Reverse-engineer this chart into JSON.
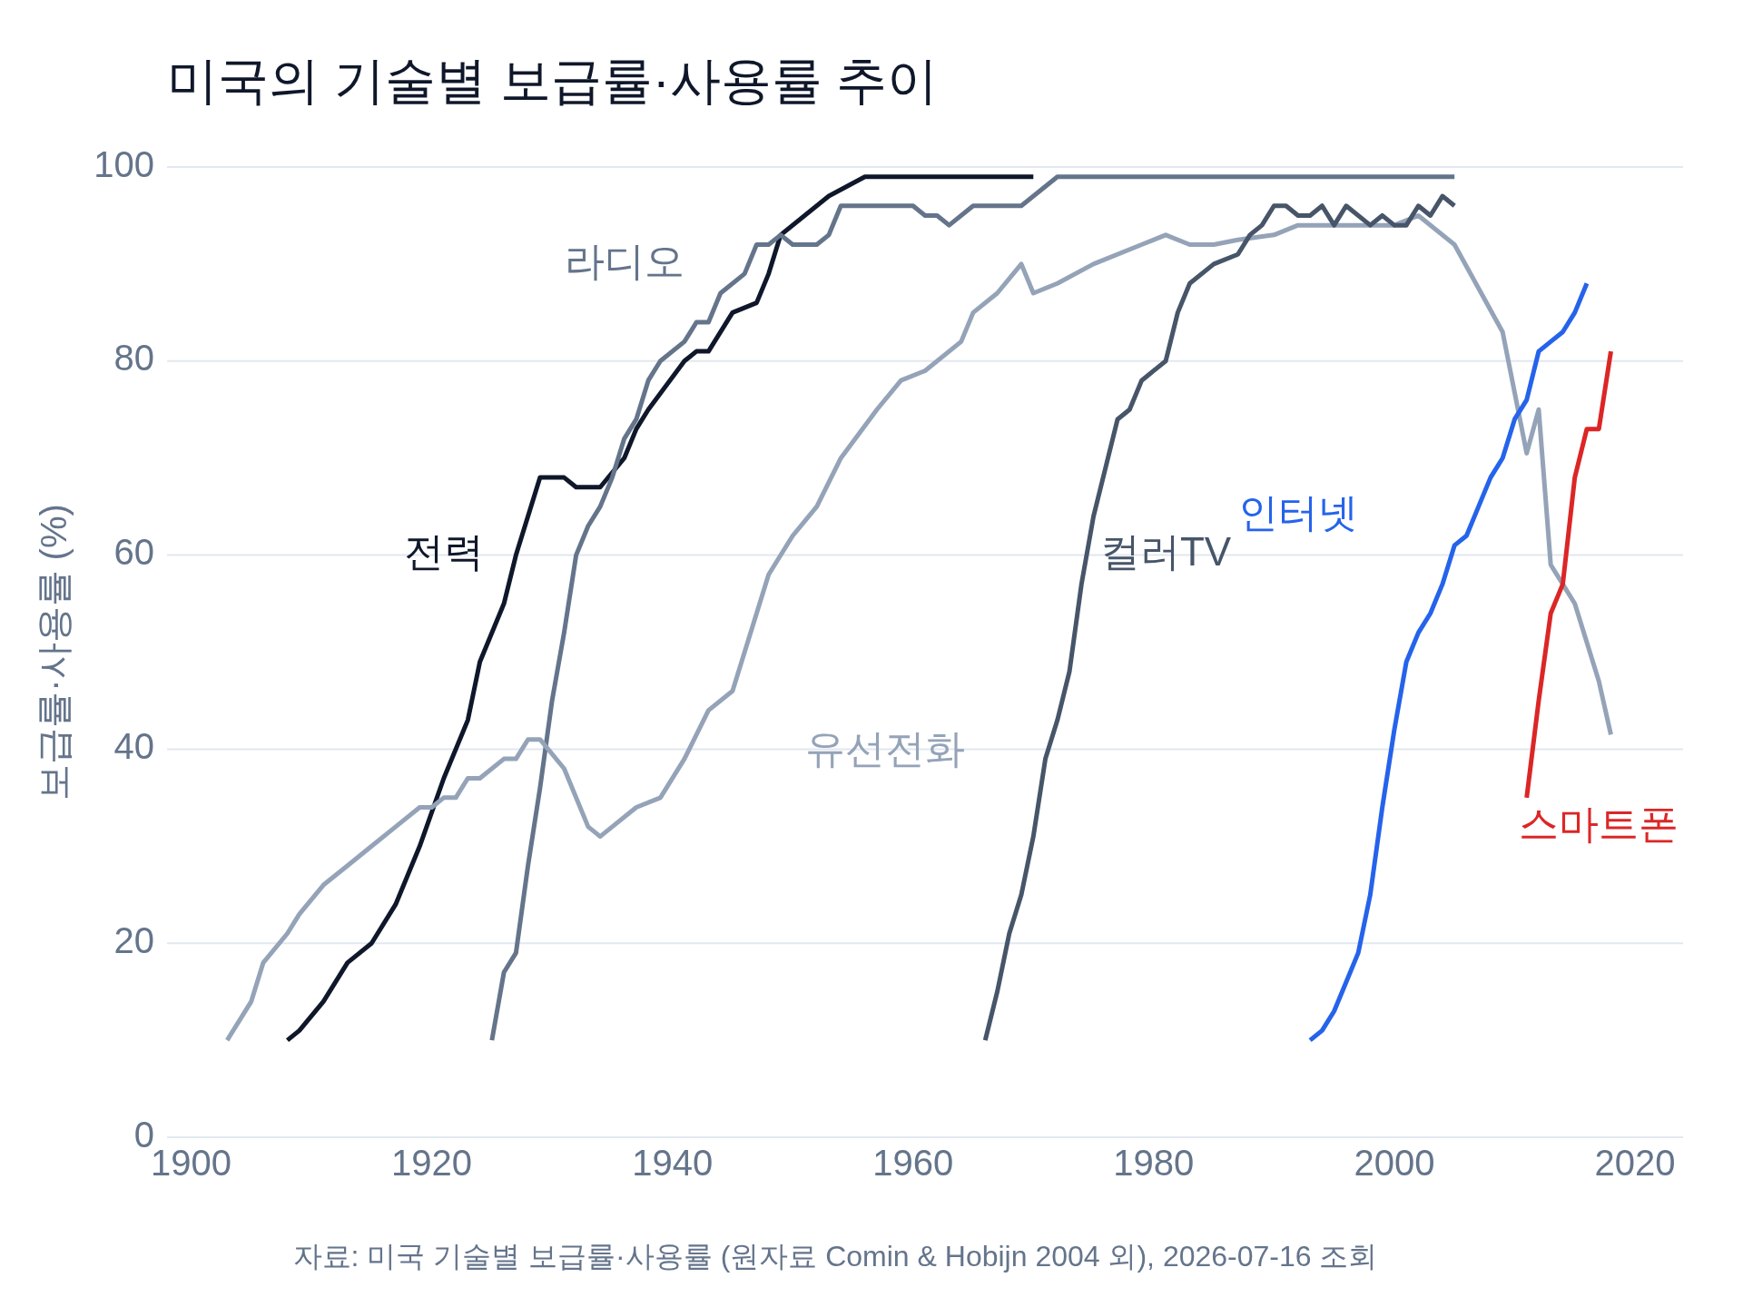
{
  "chart_data": {
    "type": "line",
    "title": "미국의 기술별 보급률·사용률 추이",
    "ylabel": "보급률·사용률 (%)",
    "annotations": [
      "자료: 미국 기술별 보급률·사용률 (원자료 Comin & Hobijn 2004 외), 2026-07-16 조회"
    ],
    "xlim": [
      1898,
      2024
    ],
    "xticks": [
      1900,
      1920,
      1940,
      1960,
      1980,
      2000,
      2020
    ],
    "ylim": [
      0,
      100
    ],
    "yticks": [
      0,
      20,
      40,
      60,
      80,
      100
    ],
    "grid": "y",
    "series": [
      {
        "name": "전력",
        "color": "#0f172a",
        "x": [
          1908,
          1909,
          1911,
          1913,
          1915,
          1917,
          1919,
          1921,
          1923,
          1924,
          1926,
          1927,
          1929,
          1931,
          1932,
          1934,
          1936,
          1937,
          1938,
          1941,
          1942,
          1943,
          1945,
          1947,
          1948,
          1949,
          1953,
          1956,
          1970
        ],
        "values": [
          10,
          11,
          14,
          18,
          20,
          24,
          30,
          37,
          43,
          49,
          55,
          60,
          68,
          68,
          67,
          67,
          70,
          73,
          75,
          80,
          81,
          81,
          85,
          86,
          89,
          93,
          97,
          99,
          99
        ]
      },
      {
        "name": "라디오",
        "color": "#64748b",
        "x": [
          1925,
          1926,
          1927,
          1928,
          1929,
          1930,
          1931,
          1932,
          1933,
          1934,
          1935,
          1936,
          1937,
          1938,
          1939,
          1941,
          1942,
          1943,
          1944,
          1946,
          1947,
          1948,
          1949,
          1950,
          1952,
          1953,
          1954,
          1960,
          1961,
          1962,
          1963,
          1965,
          1969,
          1972,
          2005
        ],
        "values": [
          10,
          17,
          19,
          28,
          36,
          45,
          52,
          60,
          63,
          65,
          68,
          72,
          74,
          78,
          80,
          82,
          84,
          84,
          87,
          89,
          92,
          92,
          93,
          92,
          92,
          93,
          96,
          96,
          95,
          95,
          94,
          96,
          96,
          99,
          99
        ]
      },
      {
        "name": "유선전화",
        "color": "#94a3b8",
        "x": [
          1903,
          1905,
          1906,
          1908,
          1909,
          1911,
          1913,
          1915,
          1917,
          1919,
          1920,
          1921,
          1922,
          1923,
          1924,
          1926,
          1927,
          1928,
          1929,
          1931,
          1933,
          1934,
          1935,
          1937,
          1939,
          1941,
          1943,
          1945,
          1948,
          1950,
          1952,
          1954,
          1957,
          1959,
          1961,
          1964,
          1965,
          1967,
          1969,
          1970,
          1972,
          1975,
          1979,
          1981,
          1983,
          1985,
          1987,
          1990,
          1992,
          2000,
          2002,
          2005,
          2009,
          2011,
          2012,
          2013,
          2014,
          2015,
          2017,
          2018
        ],
        "values": [
          10,
          14,
          18,
          21,
          23,
          26,
          28,
          30,
          32,
          34,
          34,
          35,
          35,
          37,
          37,
          39,
          39,
          41,
          41,
          38,
          32,
          31,
          32,
          34,
          35,
          39,
          44,
          46,
          58,
          62,
          65,
          70,
          75,
          78,
          79,
          82,
          85,
          87,
          90,
          87,
          88,
          90,
          92,
          93,
          92,
          92,
          92.5,
          93,
          94,
          94,
          95,
          92,
          83,
          70.5,
          75,
          59,
          57,
          55,
          47,
          41.5
        ]
      },
      {
        "name": "컬러TV",
        "color": "#475569",
        "x": [
          1966,
          1967,
          1968,
          1969,
          1970,
          1971,
          1972,
          1973,
          1974,
          1975,
          1977,
          1978,
          1979,
          1981,
          1982,
          1983,
          1985,
          1987,
          1988,
          1989,
          1990,
          1991,
          1992,
          1993,
          1994,
          1995,
          1996,
          1998,
          1999,
          2000,
          2001,
          2002,
          2003,
          2004,
          2005
        ],
        "values": [
          10,
          15,
          21,
          25,
          31,
          39,
          43,
          48,
          57,
          64,
          74,
          75,
          78,
          80,
          85,
          88,
          90,
          91,
          93,
          94,
          96,
          96,
          95,
          95,
          96,
          94,
          96,
          94,
          95,
          94,
          94,
          96,
          95,
          97,
          96
        ]
      },
      {
        "name": "인터넷",
        "color": "#2563eb",
        "x": [
          1993,
          1994,
          1995,
          1996,
          1997,
          1998,
          1999,
          2000,
          2001,
          2002,
          2003,
          2004,
          2005,
          2006,
          2007,
          2008,
          2009,
          2010,
          2011,
          2012,
          2013,
          2014,
          2015,
          2016
        ],
        "values": [
          10,
          11,
          13,
          16,
          19,
          25,
          34,
          42,
          49,
          52,
          54,
          57,
          61,
          62,
          65,
          68,
          70,
          74,
          76,
          81,
          82,
          83,
          85,
          88
        ]
      },
      {
        "name": "스마트폰",
        "color": "#dc2626",
        "x": [
          2011,
          2012,
          2013,
          2014,
          2015,
          2016,
          2017,
          2018
        ],
        "values": [
          35,
          45,
          54,
          57,
          68,
          73,
          73,
          81
        ]
      }
    ]
  }
}
